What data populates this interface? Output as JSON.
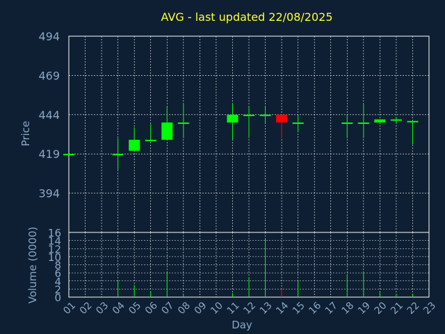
{
  "chart_data": {
    "type": "candlestick",
    "title": "AVG - last updated 22/08/2025",
    "price_axis": {
      "label": "Price",
      "ylim": [
        369,
        494
      ],
      "ticks": [
        394,
        419,
        444,
        469,
        494
      ]
    },
    "volume_axis": {
      "label": "Volume (0000)",
      "ylim": [
        0,
        16
      ],
      "ticks": [
        0,
        2,
        4,
        6,
        8,
        10,
        12,
        14,
        16
      ]
    },
    "x_axis": {
      "label": "Day",
      "ticks": [
        "01",
        "02",
        "03",
        "04",
        "05",
        "06",
        "07",
        "08",
        "09",
        "10",
        "11",
        "12",
        "13",
        "14",
        "15",
        "16",
        "17",
        "18",
        "19",
        "20",
        "21",
        "22",
        "23"
      ]
    },
    "grid": true,
    "colors": {
      "up": "#00ff00",
      "down": "#ff0000",
      "volume": "#00ff00",
      "volume_down": "#ff0000",
      "grid": "#ffffff",
      "axis": "#ffffff",
      "title": "#ffff33",
      "label": "#8aa7c4",
      "background": "#0e1f33"
    },
    "candles": [
      {
        "day": "01",
        "open": 419,
        "high": 419,
        "low": 419,
        "close": 419,
        "volume": 0
      },
      {
        "day": "04",
        "open": 419,
        "high": 429,
        "low": 409,
        "close": 419,
        "volume": 4
      },
      {
        "day": "05",
        "open": 421,
        "high": 436,
        "low": 421,
        "close": 428,
        "volume": 3
      },
      {
        "day": "06",
        "open": 428,
        "high": 438,
        "low": 428,
        "close": 428,
        "volume": 1.5
      },
      {
        "day": "07",
        "open": 428,
        "high": 449,
        "low": 428,
        "close": 439,
        "volume": 6
      },
      {
        "day": "08",
        "open": 439,
        "high": 451,
        "low": 429,
        "close": 439,
        "volume": 0.5
      },
      {
        "day": "11",
        "open": 439,
        "high": 451,
        "low": 428,
        "close": 444,
        "volume": 1
      },
      {
        "day": "12",
        "open": 444,
        "high": 449,
        "low": 429,
        "close": 444,
        "volume": 5
      },
      {
        "day": "13",
        "open": 444,
        "high": 449,
        "low": 439,
        "close": 444,
        "volume": 14.5
      },
      {
        "day": "14",
        "open": 444,
        "high": 444,
        "low": 429,
        "close": 439,
        "volume": 2
      },
      {
        "day": "15",
        "open": 439,
        "high": 444,
        "low": 433,
        "close": 439,
        "volume": 4
      },
      {
        "day": "18",
        "open": 439,
        "high": 444,
        "low": 429,
        "close": 439,
        "volume": 5.5
      },
      {
        "day": "19",
        "open": 439,
        "high": 451,
        "low": 429,
        "close": 439,
        "volume": 6
      },
      {
        "day": "20",
        "open": 439,
        "high": 441,
        "low": 438,
        "close": 441,
        "volume": 1.5
      },
      {
        "day": "21",
        "open": 441,
        "high": 442,
        "low": 438,
        "close": 441,
        "volume": 0.8
      },
      {
        "day": "22",
        "open": 440,
        "high": 440,
        "low": 425,
        "close": 440,
        "volume": 0.8
      }
    ]
  }
}
